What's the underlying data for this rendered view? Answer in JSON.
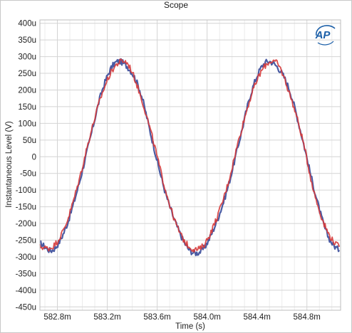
{
  "chart_data": {
    "type": "line",
    "title": "Scope",
    "xlabel": "Time (s)",
    "ylabel": "Instantaneous Level (V)",
    "x_unit": "s",
    "y_unit": "V",
    "xlim": [
      0.58266,
      0.58507
    ],
    "ylim": [
      -0.00046,
      0.00041
    ],
    "x_ticks": [
      0.5828,
      0.5832,
      0.5836,
      0.584,
      0.5844,
      0.5848
    ],
    "x_tick_labels": [
      "582.8m",
      "583.2m",
      "583.6m",
      "584.0m",
      "584.4m",
      "584.8m"
    ],
    "y_ticks": [
      0.0004,
      0.00035,
      0.0003,
      0.00025,
      0.0002,
      0.00015,
      0.0001,
      5e-05,
      0,
      -5e-05,
      -0.0001,
      -0.00015,
      -0.0002,
      -0.00025,
      -0.0003,
      -0.00035,
      -0.0004,
      -0.00045
    ],
    "y_tick_labels": [
      "400u",
      "350u",
      "300u",
      "250u",
      "200u",
      "150u",
      "100u",
      "50u",
      "0",
      "-50u",
      "-100u",
      "-150u",
      "-200u",
      "-250u",
      "-300u",
      "-350u",
      "-400u",
      "-450u"
    ],
    "grid": true,
    "series": [
      {
        "color": "#4a5ba3",
        "x": [
          0.58266,
          0.58276,
          0.58286,
          0.58296,
          0.58306,
          0.58316,
          0.58326,
          0.58336,
          0.58346,
          0.58356,
          0.58366,
          0.58376,
          0.58386,
          0.58396,
          0.58406,
          0.58416,
          0.58426,
          0.58436,
          0.58446,
          0.58456,
          0.58466,
          0.58476,
          0.58486,
          0.58496,
          0.58506
        ],
        "y": [
          -0.00026,
          -0.00028,
          -0.00022,
          -0.0001,
          5e-05,
          0.0002,
          0.00028,
          0.00027,
          0.0002,
          5e-05,
          -0.0001,
          -0.00021,
          -0.00028,
          -0.00028,
          -0.00021,
          -0.0001,
          5e-05,
          0.0002,
          0.00028,
          0.00027,
          0.0002,
          6e-05,
          -0.0001,
          -0.00023,
          -0.00028
        ]
      },
      {
        "color": "#d63a3a",
        "x": [
          0.58266,
          0.58276,
          0.58286,
          0.58296,
          0.58306,
          0.58316,
          0.58326,
          0.58336,
          0.58346,
          0.58356,
          0.58366,
          0.58376,
          0.58386,
          0.58396,
          0.58406,
          0.58416,
          0.58426,
          0.58436,
          0.58446,
          0.58456,
          0.58466,
          0.58476,
          0.58486,
          0.58496,
          0.58506
        ],
        "y": [
          -0.00027,
          -0.00027,
          -0.00021,
          -9e-05,
          6e-05,
          0.00019,
          0.00027,
          0.00028,
          0.00019,
          6e-05,
          -9e-05,
          -0.00021,
          -0.00027,
          -0.00027,
          -0.0002,
          -9e-05,
          6e-05,
          0.00019,
          0.00027,
          0.00028,
          0.00019,
          6e-05,
          -0.00011,
          -0.00022,
          -0.00027
        ]
      }
    ]
  },
  "logo": {
    "text": "AP",
    "color": "#1b5fa8"
  }
}
